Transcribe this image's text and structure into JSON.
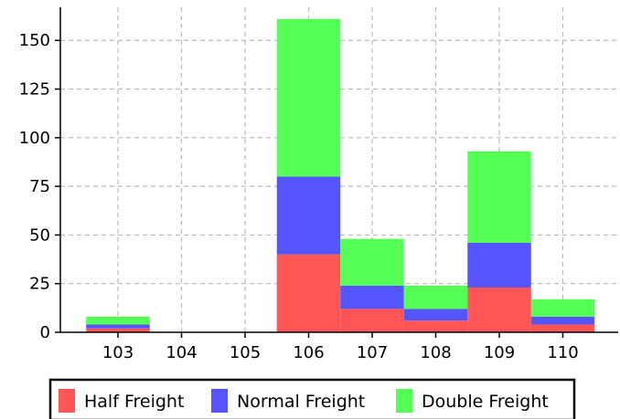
{
  "chart_data": {
    "type": "bar",
    "stacked": true,
    "categories": [
      "103",
      "104",
      "105",
      "106",
      "107",
      "108",
      "109",
      "110"
    ],
    "series": [
      {
        "name": "Half Freight",
        "color": "#ff5555",
        "values": [
          2,
          0,
          0,
          40,
          12,
          6,
          23,
          4
        ]
      },
      {
        "name": "Normal Freight",
        "color": "#5555ff",
        "values": [
          2,
          0,
          0,
          40,
          12,
          6,
          23,
          4
        ]
      },
      {
        "name": "Double Freight",
        "color": "#55ff55",
        "values": [
          4,
          0,
          0,
          81,
          24,
          12,
          47,
          9
        ]
      }
    ],
    "y_ticks": [
      0,
      25,
      50,
      75,
      100,
      125,
      150
    ],
    "ylim": [
      0,
      167
    ],
    "grid": true,
    "grid_style": "dashed",
    "legend_position": "bottom",
    "title": "",
    "xlabel": "",
    "ylabel": ""
  }
}
